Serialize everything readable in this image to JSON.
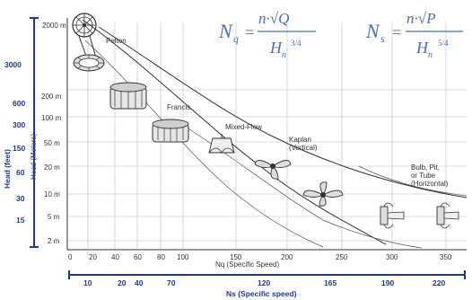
{
  "formulas": {
    "nq": {
      "lhs": "N",
      "lhs_sub": "q",
      "eq": "=",
      "num": "n·√Q",
      "den": "H",
      "den_sub": "n",
      "den_exp": "3/4"
    },
    "ns": {
      "lhs": "N",
      "lhs_sub": "s",
      "eq": "=",
      "num": "n·√P",
      "den": "H",
      "den_sub": "n",
      "den_exp": "5/4"
    }
  },
  "left_axis": {
    "meters_label": "Head (Meters)",
    "meters_ticks": [
      "2000 m",
      "200 m",
      "100 m",
      "50 m",
      "20 m",
      "10 m",
      "5 m",
      "2 m"
    ]
  },
  "feet_axis": {
    "label": "Head (feet)",
    "ticks": [
      "3000",
      "600",
      "300",
      "150",
      "60",
      "30",
      "15"
    ],
    "color": "#1f3a93"
  },
  "bottom_axis": {
    "label": "Nq (Specific Speed)",
    "ticks": [
      "0",
      "20",
      "40",
      "60",
      "80",
      "100",
      "150",
      "200",
      "250",
      "300",
      "350"
    ]
  },
  "ns_axis": {
    "label": "Ns (Specific speed)",
    "ticks": [
      "10",
      "20",
      "40",
      "70",
      "120",
      "165",
      "190",
      "220"
    ],
    "color": "#1f3a93"
  },
  "regions": {
    "pelton": "Pelton",
    "francis": "Francis",
    "mixed_flow": "Mixed-Flow",
    "kaplan_l1": "Kaplan",
    "kaplan_l2": "(Vertical)",
    "bulb_l1": "Bulb, Pit,",
    "bulb_l2": "or Tube",
    "bulb_l3": "(Horizontal)"
  },
  "icons": [
    "pelton-wheel-icon",
    "francis-runner-icon",
    "mixed-flow-runner-icon",
    "propeller-runner-icon",
    "kaplan-runner-icon",
    "bulb-turbine-icon"
  ]
}
